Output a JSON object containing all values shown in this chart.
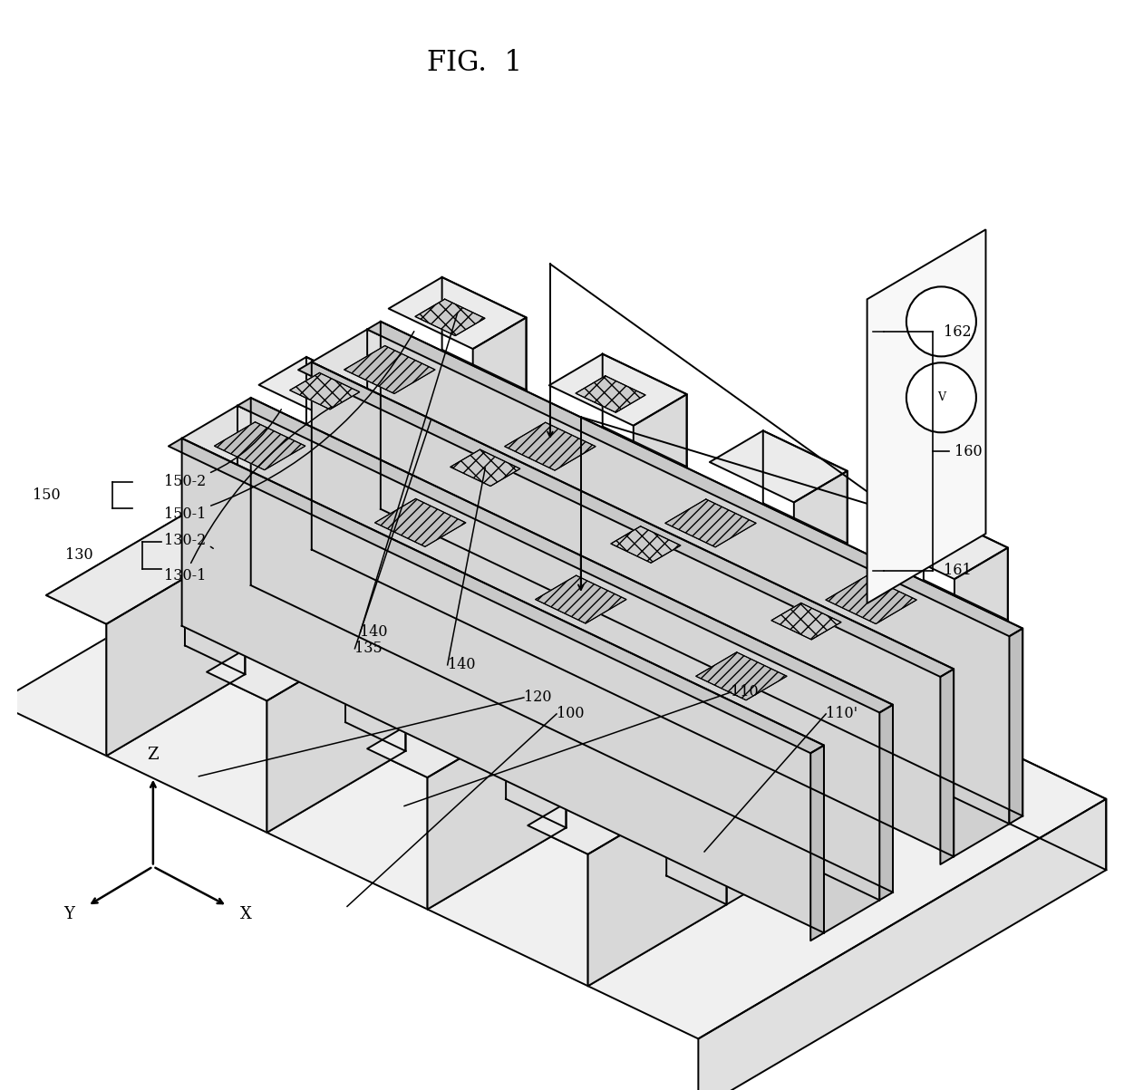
{
  "title": "FIG.  1",
  "bg_color": "#ffffff",
  "lw": 1.4,
  "lc": "#000000",
  "OX": 0.355,
  "OY": 0.575,
  "IX": [
    0.092,
    -0.044
  ],
  "IY": [
    -0.068,
    -0.04
  ],
  "IZ": [
    0.0,
    0.093
  ],
  "fs_label": 11.5,
  "fs_title": 22
}
